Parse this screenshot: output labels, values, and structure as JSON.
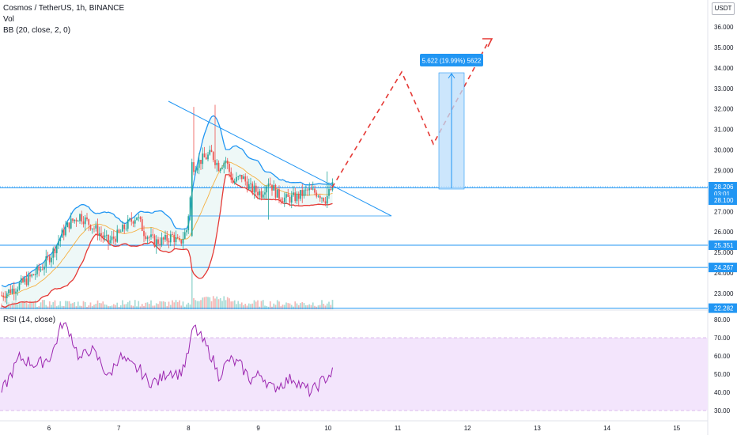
{
  "header": {
    "symbol_line": "Cosmos / TetherUS, 1h, BINANCE",
    "volume_label": "Vol",
    "bb_label": "BB (20, close, 2, 0)",
    "currency": "USDT"
  },
  "price_axis": {
    "ticks": [
      "36.000",
      "35.000",
      "34.000",
      "33.000",
      "32.000",
      "31.000",
      "30.000",
      "29.000",
      "27.000",
      "26.000",
      "25.000",
      "24.000",
      "23.000"
    ],
    "tags": [
      {
        "label": "28.206",
        "color": "#2196f3",
        "value": 28.206
      },
      {
        "label": "03:01",
        "color": "#2196f3",
        "value": 27.85
      },
      {
        "label": "28.100",
        "color": "#2196f3",
        "value": 27.55
      },
      {
        "label": "25.351",
        "color": "#2196f3",
        "value": 25.351
      },
      {
        "label": "24.267",
        "color": "#2196f3",
        "value": 24.267
      },
      {
        "label": "22.282",
        "color": "#2196f3",
        "value": 22.282
      }
    ]
  },
  "measure_label": "5.622 (19.99%) 5622",
  "rsi": {
    "label": "RSI (14, close)",
    "ticks": [
      "80.00",
      "70.00",
      "60.00",
      "50.00",
      "40.00",
      "30.00"
    ]
  },
  "time_axis": {
    "labels": [
      "6",
      "7",
      "8",
      "9",
      "10",
      "11",
      "12",
      "13",
      "14",
      "15"
    ]
  },
  "colors": {
    "up": "#26a69a",
    "down": "#ef5350",
    "bb_upper": "#2196f3",
    "bb_lower": "#e53935",
    "bb_basis": "#f5b041",
    "rsi_line": "#9c27b0",
    "rsi_band": "#f3e5fc",
    "hline": "#2196f3",
    "projection": "#e53935"
  }
}
